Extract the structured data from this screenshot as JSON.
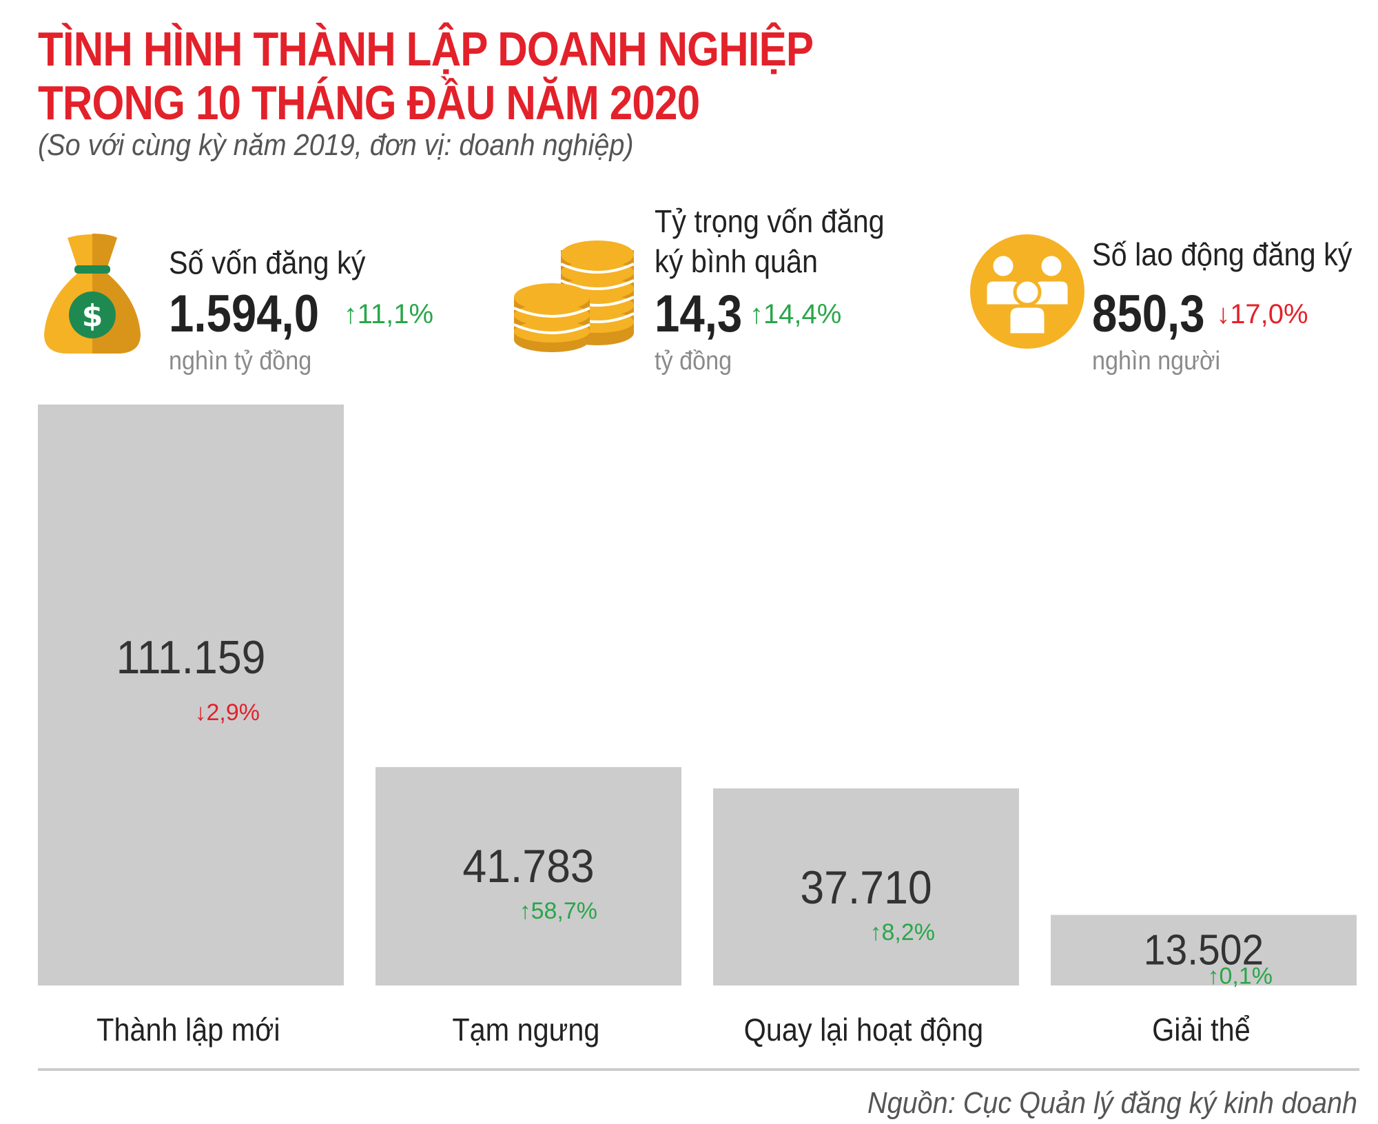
{
  "title": {
    "line1": "TÌNH HÌNH THÀNH LẬP DOANH NGHIỆP",
    "line2": "TRONG 10 THÁNG ĐẦU NĂM 2020",
    "subtitle": "(So với cùng kỳ năm 2019, đơn vị: doanh nghiệp)"
  },
  "stats": [
    {
      "label_line1": "Số vốn đăng ký",
      "label_line2": "",
      "value": "1.594,0",
      "arrow": "↑",
      "change": "11,1%",
      "direction": "up",
      "unit": "nghìn tỷ đồng",
      "icon": "money-bag-icon"
    },
    {
      "label_line1": "Tỷ trọng vốn đăng",
      "label_line2": "ký bình quân",
      "value": "14,3",
      "arrow": "↑",
      "change": "14,4%",
      "direction": "up",
      "unit": "tỷ đồng",
      "icon": "coins-icon"
    },
    {
      "label_line1": "Số lao động đăng ký",
      "label_line2": "",
      "value": "850,3",
      "arrow": "↓",
      "change": "17,0%",
      "direction": "down",
      "unit": "nghìn người",
      "icon": "people-icon"
    }
  ],
  "chart_data": {
    "type": "bar",
    "categories": [
      "Thành lập mới",
      "Tạm ngưng",
      "Quay lại hoạt động",
      "Giải thể"
    ],
    "values": [
      111159,
      41783,
      37710,
      13502
    ],
    "value_labels": [
      "111.159",
      "41.783",
      "37.710",
      "13.502"
    ],
    "change_labels": [
      {
        "arrow": "↓",
        "text": "2,9%",
        "direction": "down"
      },
      {
        "arrow": "↑",
        "text": "58,7%",
        "direction": "up"
      },
      {
        "arrow": "↑",
        "text": "8,2%",
        "direction": "up"
      },
      {
        "arrow": "↑",
        "text": "0,1%",
        "direction": "up"
      }
    ],
    "ylim": [
      0,
      111159
    ],
    "grid": false,
    "bar_color": "#cccccc"
  },
  "colors": {
    "title": "#e3212a",
    "up": "#2aa64a",
    "down": "#e3212a",
    "icon": "#f5b225",
    "icon_dark": "#d9951a"
  },
  "source": "Nguồn: Cục Quản lý đăng ký kinh doanh"
}
